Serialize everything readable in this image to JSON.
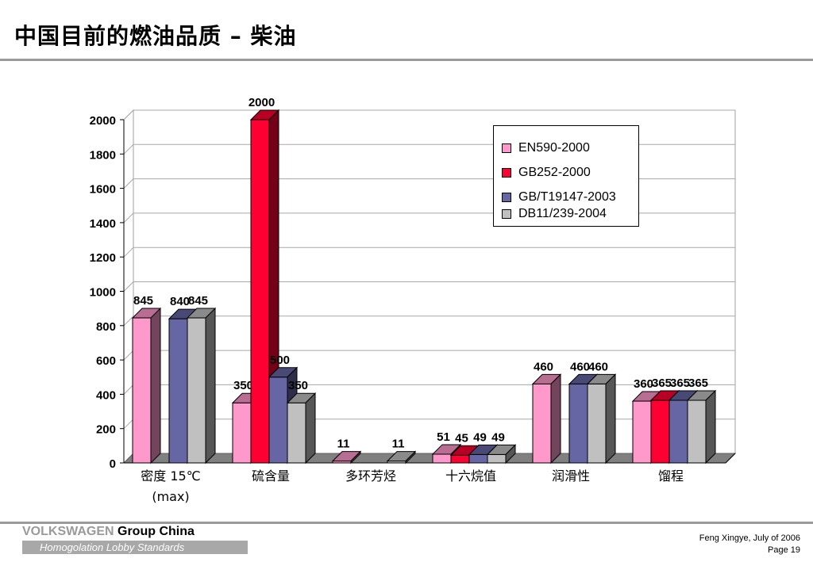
{
  "slide": {
    "title": "中国目前的燃油品质 – 柴油",
    "brand_vw": "VOLKSWAGEN",
    "brand_group": " Group China",
    "brand_sub": "Homogolation Lobby Standards",
    "author_date": "Feng Xingye, July of  2006",
    "page": "Page 19"
  },
  "colors": {
    "EN590-2000": "#ff99cc",
    "GB252-2000": "#ff0033",
    "GB/T19147-2003": "#6666a4",
    "DB11/239-2004": "#c0c0c0"
  },
  "chart_data": {
    "type": "bar",
    "categories": [
      "密度 15℃\n(max)",
      "硫含量",
      "多环芳烃",
      "十六烷值",
      "润滑性",
      "馏程"
    ],
    "series": [
      {
        "name": "EN590-2000",
        "values": [
          845,
          350,
          11,
          51,
          460,
          360
        ]
      },
      {
        "name": "GB252-2000",
        "values": [
          null,
          2000,
          null,
          45,
          null,
          365
        ]
      },
      {
        "name": "GB/T19147-2003",
        "values": [
          840,
          500,
          null,
          49,
          460,
          365
        ]
      },
      {
        "name": "DB11/239-2004",
        "values": [
          845,
          350,
          11,
          49,
          460,
          365
        ]
      }
    ],
    "ylim": [
      0,
      2000
    ],
    "yticks": [
      "0",
      "200",
      "400",
      "600",
      "800",
      "1000",
      "1200",
      "1400",
      "1600",
      "1800",
      "2000"
    ],
    "grid": true,
    "legend_position": "top-right"
  }
}
